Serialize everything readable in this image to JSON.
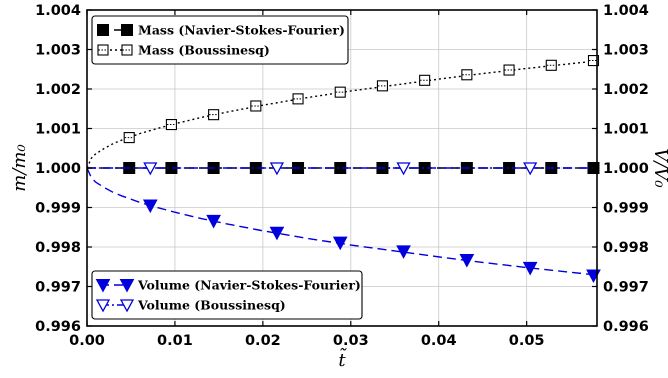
{
  "chart_data": {
    "type": "line",
    "title": "",
    "xlabel": "t̃",
    "ylabel_left": "m/m₀",
    "ylabel_right": "V/V₀",
    "xlim": [
      0.0,
      0.058
    ],
    "ylim": [
      0.996,
      1.004
    ],
    "xticks": [
      "0.00",
      "0.01",
      "0.02",
      "0.03",
      "0.04",
      "0.05"
    ],
    "yticks": [
      "0.996",
      "0.997",
      "0.998",
      "0.999",
      "1.000",
      "1.001",
      "1.002",
      "1.003",
      "1.004"
    ],
    "grid": true,
    "series": [
      {
        "name": "Mass (Navier-Stokes-Fourier)",
        "color": "#000000",
        "line": "dashed",
        "marker": "filled-square",
        "curve": {
          "x": [
            0.0,
            0.058
          ],
          "y": [
            1.0,
            1.0
          ]
        },
        "markers": {
          "x": [
            0.0048,
            0.0096,
            0.0144,
            0.0192,
            0.024,
            0.0288,
            0.0336,
            0.0384,
            0.0432,
            0.048,
            0.0528,
            0.0576
          ],
          "y": [
            1.0,
            1.0,
            1.0,
            1.0,
            1.0,
            1.0,
            1.0,
            1.0,
            1.0,
            1.0,
            1.0,
            1.0
          ]
        }
      },
      {
        "name": "Mass (Boussinesq)",
        "color": "#000000",
        "line": "dotted",
        "marker": "open-square-dot",
        "curve": {
          "x": [
            0.0,
            0.0005,
            0.001,
            0.002,
            0.003,
            0.004,
            0.006,
            0.008,
            0.01,
            0.013,
            0.016,
            0.02,
            0.025,
            0.03,
            0.035,
            0.04,
            0.045,
            0.05,
            0.055,
            0.058
          ],
          "y": [
            1.0,
            1.00025,
            1.00036,
            1.0005,
            1.00062,
            1.00071,
            1.00087,
            1.001,
            1.00112,
            1.00128,
            1.00142,
            1.00159,
            1.00178,
            1.00195,
            1.0021,
            1.00225,
            1.00239,
            1.00252,
            1.00264,
            1.00271
          ]
        },
        "markers": {
          "x": [
            0.0048,
            0.0096,
            0.0144,
            0.0192,
            0.024,
            0.0288,
            0.0336,
            0.0384,
            0.0432,
            0.048,
            0.0528,
            0.0576
          ],
          "y": [
            1.00077,
            1.0011,
            1.00135,
            1.00157,
            1.00175,
            1.00192,
            1.00208,
            1.00222,
            1.00236,
            1.00248,
            1.0026,
            1.00272
          ]
        }
      },
      {
        "name": "Volume (Navier-Stokes-Fourier)",
        "color": "#0000dd",
        "line": "dashed",
        "marker": "filled-triangle-down",
        "curve": {
          "x": [
            0.0,
            0.0005,
            0.001,
            0.002,
            0.003,
            0.004,
            0.006,
            0.008,
            0.01,
            0.013,
            0.016,
            0.02,
            0.025,
            0.03,
            0.035,
            0.04,
            0.045,
            0.05,
            0.055,
            0.058
          ],
          "y": [
            1.0,
            0.99975,
            0.99964,
            0.9995,
            0.99938,
            0.99929,
            0.99913,
            0.999,
            0.99888,
            0.99872,
            0.99858,
            0.99841,
            0.99822,
            0.99805,
            0.9979,
            0.99775,
            0.99761,
            0.99748,
            0.99736,
            0.99729
          ]
        },
        "markers": {
          "x": [
            0.0072,
            0.0144,
            0.0216,
            0.0288,
            0.036,
            0.0432,
            0.0504,
            0.0576
          ],
          "y": [
            0.99905,
            0.99866,
            0.99836,
            0.99811,
            0.99789,
            0.99767,
            0.99747,
            0.99728
          ]
        }
      },
      {
        "name": "Volume (Boussinesq)",
        "color": "#0000dd",
        "line": "dashdot",
        "marker": "open-triangle-down",
        "curve": {
          "x": [
            0.0,
            0.058
          ],
          "y": [
            1.0,
            1.0
          ]
        },
        "markers": {
          "x": [
            0.0072,
            0.0216,
            0.036,
            0.0504
          ],
          "y": [
            1.0,
            1.0,
            1.0,
            1.0
          ]
        }
      }
    ],
    "legend": [
      {
        "position": "top-left",
        "entries": [
          0,
          1
        ]
      },
      {
        "position": "bottom-left",
        "entries": [
          2,
          3
        ]
      }
    ]
  }
}
